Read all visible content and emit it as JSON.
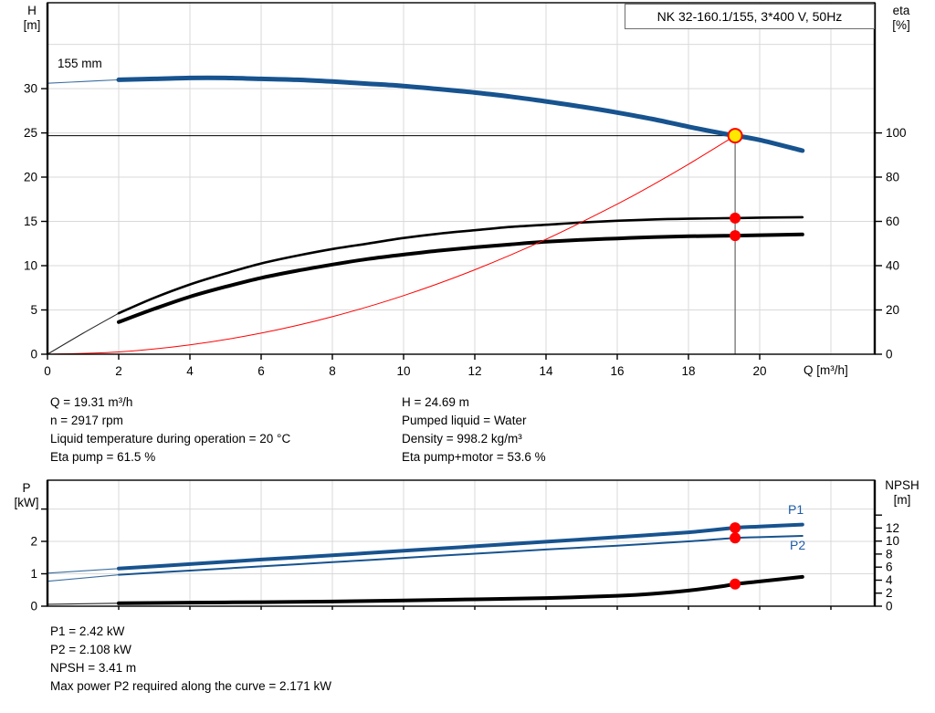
{
  "title_box": {
    "text": "NK 32-160.1/155, 3*400 V, 50Hz"
  },
  "axis_labels": {
    "h": [
      "H",
      "[m]"
    ],
    "eta": [
      "eta",
      "[%]"
    ],
    "q": "Q [m³/h]",
    "p": [
      "P",
      "[kW]"
    ],
    "npsh": [
      "NPSH",
      "[m]"
    ]
  },
  "curve_tags": {
    "impeller": "155 mm",
    "p1": "P1",
    "p2": "P2"
  },
  "info_left": {
    "lines": [
      "Q = 19.31 m³/h",
      "n = 2917 rpm",
      "Liquid temperature during operation = 20 °C",
      "Eta pump = 61.5 %"
    ]
  },
  "info_right": {
    "lines": [
      "H = 24.69 m",
      "Pumped liquid = Water",
      "Density = 998.2 kg/m³",
      "Eta pump+motor = 53.6 %"
    ]
  },
  "info_bottom": {
    "lines": [
      "P1 = 2.42 kW",
      "P2 = 2.108 kW",
      "NPSH = 3.41 m",
      "Max power P2 required along the curve = 2.171 kW"
    ]
  },
  "colors": {
    "curve_blue": "#17538f",
    "label_blue": "#1d5ca8",
    "red": "#ff0000",
    "duty_yellow": "#ffe800",
    "grid": "#d9d9d9",
    "frame": "#000000",
    "duty_vline": "#666666"
  },
  "chart_data": [
    {
      "type": "line",
      "name": "qh-efficiency-chart",
      "title": "NK 32-160.1/155, 3*400 V, 50Hz",
      "x_axis": {
        "label": "Q [m³/h]",
        "range": [
          0,
          23.23
        ],
        "ticks": [
          0,
          2,
          4,
          6,
          8,
          10,
          12,
          14,
          16,
          18,
          20
        ],
        "grid_ticks": [
          2,
          4,
          6,
          8,
          10,
          12,
          14,
          16,
          18,
          20,
          22
        ]
      },
      "y_left": {
        "label": "H [m]",
        "range": [
          0,
          39.7
        ],
        "ticks": [
          0,
          5,
          10,
          15,
          20,
          25,
          30
        ],
        "grid_ticks": [
          5,
          10,
          15,
          20,
          25,
          30,
          35
        ]
      },
      "y_right": {
        "label": "eta [%]",
        "range": [
          0,
          158.8
        ],
        "ticks": [
          0,
          20,
          40,
          60,
          80,
          100
        ],
        "minor_ticks": []
      },
      "series": [
        {
          "name": "head-155mm",
          "label": "155 mm",
          "axis": "left",
          "color": "#17538f",
          "width": 5,
          "thin_until": 2,
          "points": [
            [
              0,
              30.6
            ],
            [
              1,
              30.8
            ],
            [
              2,
              31.0
            ],
            [
              3,
              31.1
            ],
            [
              4,
              31.2
            ],
            [
              5,
              31.2
            ],
            [
              6,
              31.1
            ],
            [
              7,
              31.0
            ],
            [
              8,
              30.8
            ],
            [
              9,
              30.55
            ],
            [
              10,
              30.3
            ],
            [
              11,
              29.95
            ],
            [
              12,
              29.55
            ],
            [
              13,
              29.1
            ],
            [
              14,
              28.55
            ],
            [
              15,
              27.95
            ],
            [
              16,
              27.3
            ],
            [
              17,
              26.55
            ],
            [
              18,
              25.7
            ],
            [
              19,
              24.9
            ],
            [
              19.31,
              24.69
            ],
            [
              20,
              24.2
            ],
            [
              21.2,
              23.0
            ]
          ]
        },
        {
          "name": "eta-pump",
          "axis": "right",
          "color": "#000000",
          "width": 2.6,
          "thin_until": 2,
          "points": [
            [
              0,
              0
            ],
            [
              1,
              9.5
            ],
            [
              2,
              18.5
            ],
            [
              3,
              25.5
            ],
            [
              4,
              31.5
            ],
            [
              5,
              36.5
            ],
            [
              6,
              41
            ],
            [
              7,
              44.5
            ],
            [
              8,
              47.5
            ],
            [
              9,
              50
            ],
            [
              10,
              52.5
            ],
            [
              11,
              54.5
            ],
            [
              12,
              56
            ],
            [
              13,
              57.5
            ],
            [
              14,
              58.5
            ],
            [
              15,
              59.5
            ],
            [
              16,
              60.3
            ],
            [
              17,
              60.9
            ],
            [
              18,
              61.2
            ],
            [
              19,
              61.45
            ],
            [
              19.31,
              61.5
            ],
            [
              20,
              61.7
            ],
            [
              21.2,
              61.9
            ]
          ]
        },
        {
          "name": "eta-pump-motor",
          "axis": "right",
          "color": "#000000",
          "width": 4,
          "thin_until": null,
          "points": [
            [
              2,
              14.5
            ],
            [
              3,
              20.5
            ],
            [
              4,
              26
            ],
            [
              5,
              30.5
            ],
            [
              6,
              34.5
            ],
            [
              7,
              37.7
            ],
            [
              8,
              40.5
            ],
            [
              9,
              43
            ],
            [
              10,
              45
            ],
            [
              11,
              46.8
            ],
            [
              12,
              48.3
            ],
            [
              13,
              49.6
            ],
            [
              14,
              50.8
            ],
            [
              15,
              51.7
            ],
            [
              16,
              52.3
            ],
            [
              17,
              52.9
            ],
            [
              18,
              53.3
            ],
            [
              19,
              53.5
            ],
            [
              19.31,
              53.6
            ],
            [
              20,
              53.8
            ],
            [
              21.2,
              54.1
            ]
          ]
        },
        {
          "name": "system-curve",
          "axis": "left",
          "color": "#ff0000",
          "width": 1,
          "thin_until": null,
          "points": [
            [
              0,
              0
            ],
            [
              2,
              0.26
            ],
            [
              4,
              1.06
            ],
            [
              6,
              2.38
            ],
            [
              8,
              4.24
            ],
            [
              10,
              6.62
            ],
            [
              12,
              9.54
            ],
            [
              14,
              12.98
            ],
            [
              16,
              16.95
            ],
            [
              17,
              19.14
            ],
            [
              18,
              21.46
            ],
            [
              19,
              23.91
            ],
            [
              19.31,
              24.69
            ]
          ]
        }
      ],
      "reference_lines": {
        "h_line": {
          "v": 24.69,
          "from_q": 0,
          "to_q": 19.31
        },
        "v_line": {
          "q": 19.31,
          "from_v": 24.69
        }
      },
      "markers": [
        {
          "name": "duty-point-marker",
          "style": "duty",
          "axis": "left",
          "q": 19.31,
          "v": 24.69
        },
        {
          "name": "eta-pump-duty-dot",
          "style": "dot",
          "axis": "right",
          "q": 19.31,
          "v": 61.5
        },
        {
          "name": "eta-pump-motor-duty-dot",
          "style": "dot",
          "axis": "right",
          "q": 19.31,
          "v": 53.6
        }
      ]
    },
    {
      "type": "line",
      "name": "power-npsh-chart",
      "title": "",
      "x_axis": {
        "label": "",
        "range": [
          0,
          23.23
        ],
        "ticks": [],
        "grid_ticks": [
          2,
          4,
          6,
          8,
          10,
          12,
          14,
          16,
          18,
          20,
          22
        ]
      },
      "y_left": {
        "label": "P [kW]",
        "range": [
          0,
          3.89
        ],
        "ticks": [
          0,
          1,
          2
        ],
        "minor_ticks": [
          3
        ],
        "grid_ticks": [
          1,
          2,
          3
        ]
      },
      "y_right": {
        "label": "NPSH [m]",
        "range": [
          0,
          19.35
        ],
        "ticks": [
          0,
          2,
          4,
          6,
          8,
          10,
          12
        ],
        "minor_ticks": [
          14
        ]
      },
      "series": [
        {
          "name": "p1-power",
          "label": "P1",
          "axis": "left",
          "color": "#17538f",
          "width": 4,
          "thin_until": 2,
          "points": [
            [
              0,
              1.02
            ],
            [
              2,
              1.16
            ],
            [
              4,
              1.3
            ],
            [
              6,
              1.44
            ],
            [
              8,
              1.57
            ],
            [
              10,
              1.71
            ],
            [
              12,
              1.85
            ],
            [
              14,
              1.99
            ],
            [
              16,
              2.13
            ],
            [
              18,
              2.28
            ],
            [
              19.31,
              2.42
            ],
            [
              20,
              2.46
            ],
            [
              21.2,
              2.52
            ]
          ]
        },
        {
          "name": "p2-power",
          "label": "P2",
          "axis": "left",
          "color": "#17538f",
          "width": 2,
          "thin_until": 2,
          "points": [
            [
              0,
              0.77
            ],
            [
              2,
              0.97
            ],
            [
              4,
              1.1
            ],
            [
              6,
              1.23
            ],
            [
              8,
              1.36
            ],
            [
              10,
              1.49
            ],
            [
              12,
              1.62
            ],
            [
              14,
              1.75
            ],
            [
              16,
              1.87
            ],
            [
              18,
              2.0
            ],
            [
              19.31,
              2.108
            ],
            [
              20,
              2.13
            ],
            [
              21.2,
              2.171
            ]
          ]
        },
        {
          "name": "npsh-curve",
          "axis": "right",
          "color": "#000000",
          "width": 4,
          "thin_until": 2,
          "points": [
            [
              0,
              0.3
            ],
            [
              2,
              0.45
            ],
            [
              4,
              0.55
            ],
            [
              6,
              0.62
            ],
            [
              8,
              0.72
            ],
            [
              10,
              0.88
            ],
            [
              12,
              1.05
            ],
            [
              14,
              1.25
            ],
            [
              16,
              1.6
            ],
            [
              17,
              1.9
            ],
            [
              18,
              2.4
            ],
            [
              19,
              3.1
            ],
            [
              19.31,
              3.41
            ],
            [
              20,
              3.8
            ],
            [
              21.2,
              4.5
            ]
          ]
        }
      ],
      "reference_lines": {},
      "markers": [
        {
          "name": "p1-duty-dot",
          "style": "dot",
          "axis": "left",
          "q": 19.31,
          "v": 2.42
        },
        {
          "name": "p2-duty-dot",
          "style": "dot",
          "axis": "left",
          "q": 19.31,
          "v": 2.108
        },
        {
          "name": "npsh-duty-dot",
          "style": "dot",
          "axis": "right",
          "q": 19.31,
          "v": 3.41
        }
      ]
    }
  ]
}
